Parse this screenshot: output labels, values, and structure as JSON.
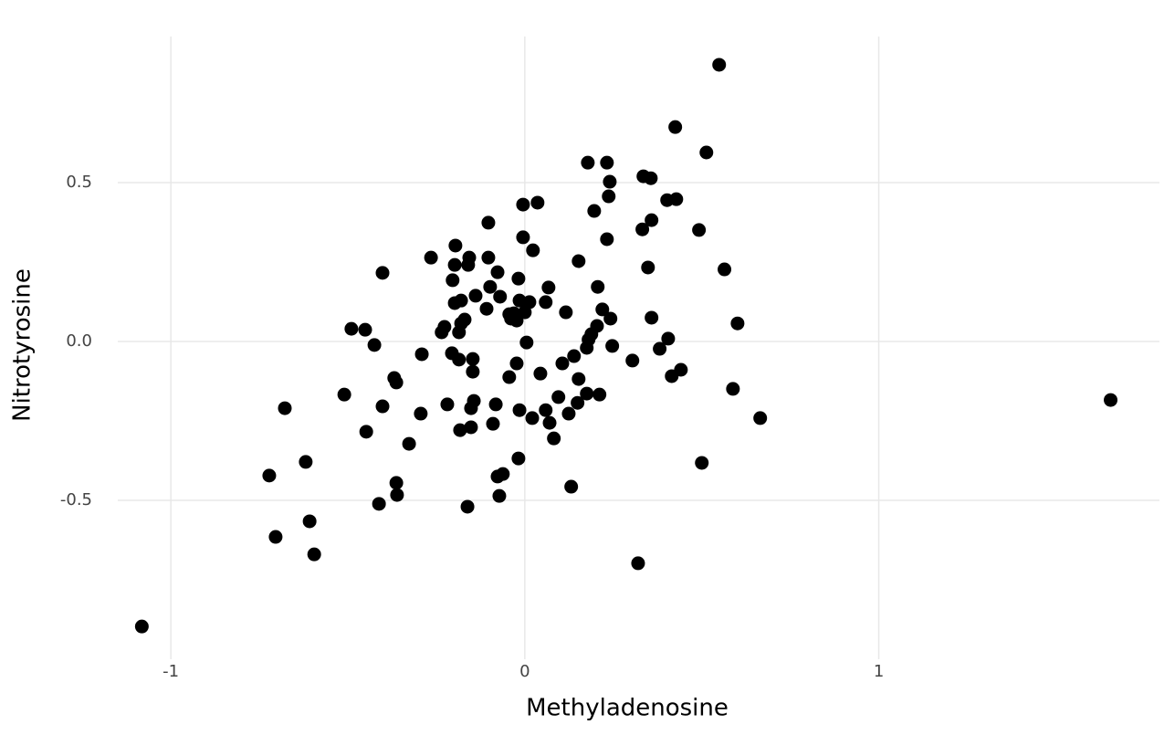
{
  "chart_data": {
    "type": "scatter",
    "x_label": "Methyladenosine",
    "y_label": "Nitrotyrosine",
    "color": "#000000",
    "grid": true,
    "xlim": [
      -1.15,
      1.78
    ],
    "ylim": [
      -1.0,
      0.96
    ],
    "xticks": [
      -1,
      0,
      1
    ],
    "yticks": [
      -0.5,
      {
        "value": 0,
        "label": "0.0"
      },
      0.5
    ],
    "x": [
      0.549,
      0.425,
      0.513,
      0.178,
      0.232,
      0.24,
      0.335,
      0.356,
      0.237,
      0.402,
      0.428,
      0.036,
      -0.005,
      0.196,
      -0.103,
      0.358,
      0.332,
      0.492,
      0.232,
      -0.005,
      0.023,
      -0.196,
      -0.265,
      -0.157,
      -0.103,
      -0.198,
      -0.16,
      -0.402,
      -0.077,
      0.152,
      0.564,
      0.348,
      -0.018,
      -0.204,
      -0.098,
      0.067,
      0.206,
      -0.139,
      -0.07,
      -0.198,
      -0.18,
      -0.015,
      0.013,
      0.059,
      -0.108,
      0.219,
      0.116,
      -0.044,
      -0.031,
      0.0,
      -0.023,
      -0.039,
      -0.17,
      -0.18,
      0.242,
      0.358,
      0.601,
      -0.49,
      -0.451,
      -0.227,
      -0.235,
      -0.186,
      0.204,
      0.188,
      0.18,
      0.405,
      -0.425,
      0.005,
      0.247,
      0.175,
      0.381,
      -0.291,
      -0.206,
      0.139,
      -0.186,
      -0.147,
      0.304,
      -0.023,
      0.106,
      0.441,
      -0.147,
      0.044,
      0.415,
      -0.369,
      -0.044,
      0.152,
      -0.363,
      0.588,
      0.095,
      0.175,
      0.211,
      -0.51,
      -0.144,
      0.149,
      -0.219,
      -0.082,
      -0.402,
      -0.152,
      -0.015,
      0.059,
      -0.678,
      1.655,
      0.124,
      -0.294,
      0.021,
      0.665,
      0.07,
      -0.09,
      -0.152,
      -0.183,
      -0.448,
      0.082,
      -0.327,
      -0.018,
      -0.619,
      0.5,
      -0.722,
      -0.062,
      -0.077,
      -0.363,
      0.131,
      -0.361,
      -0.072,
      -0.412,
      -0.162,
      -0.608,
      -0.704,
      -0.595,
      0.32,
      -1.082
    ],
    "y": [
      0.871,
      0.675,
      0.595,
      0.563,
      0.563,
      0.503,
      0.52,
      0.514,
      0.457,
      0.445,
      0.448,
      0.437,
      0.431,
      0.411,
      0.374,
      0.382,
      0.353,
      0.351,
      0.322,
      0.328,
      0.287,
      0.302,
      0.264,
      0.264,
      0.264,
      0.241,
      0.241,
      0.216,
      0.218,
      0.253,
      0.227,
      0.233,
      0.198,
      0.193,
      0.172,
      0.17,
      0.172,
      0.144,
      0.141,
      0.121,
      0.129,
      0.129,
      0.124,
      0.124,
      0.103,
      0.101,
      0.092,
      0.086,
      0.089,
      0.092,
      0.066,
      0.072,
      0.069,
      0.057,
      0.072,
      0.075,
      0.057,
      0.04,
      0.037,
      0.046,
      0.029,
      0.029,
      0.049,
      0.023,
      0.006,
      0.009,
      -0.011,
      -0.003,
      -0.014,
      -0.02,
      -0.023,
      -0.04,
      -0.037,
      -0.046,
      -0.057,
      -0.055,
      -0.06,
      -0.069,
      -0.069,
      -0.089,
      -0.095,
      -0.101,
      -0.109,
      -0.115,
      -0.112,
      -0.118,
      -0.129,
      -0.149,
      -0.175,
      -0.164,
      -0.167,
      -0.167,
      -0.187,
      -0.193,
      -0.198,
      -0.198,
      -0.204,
      -0.21,
      -0.216,
      -0.216,
      -0.21,
      -0.184,
      -0.227,
      -0.227,
      -0.241,
      -0.241,
      -0.256,
      -0.259,
      -0.27,
      -0.279,
      -0.284,
      -0.305,
      -0.322,
      -0.368,
      -0.379,
      -0.382,
      -0.422,
      -0.417,
      -0.425,
      -0.445,
      -0.457,
      -0.483,
      -0.486,
      -0.511,
      -0.52,
      -0.566,
      -0.615,
      -0.67,
      -0.698,
      -0.897
    ]
  }
}
